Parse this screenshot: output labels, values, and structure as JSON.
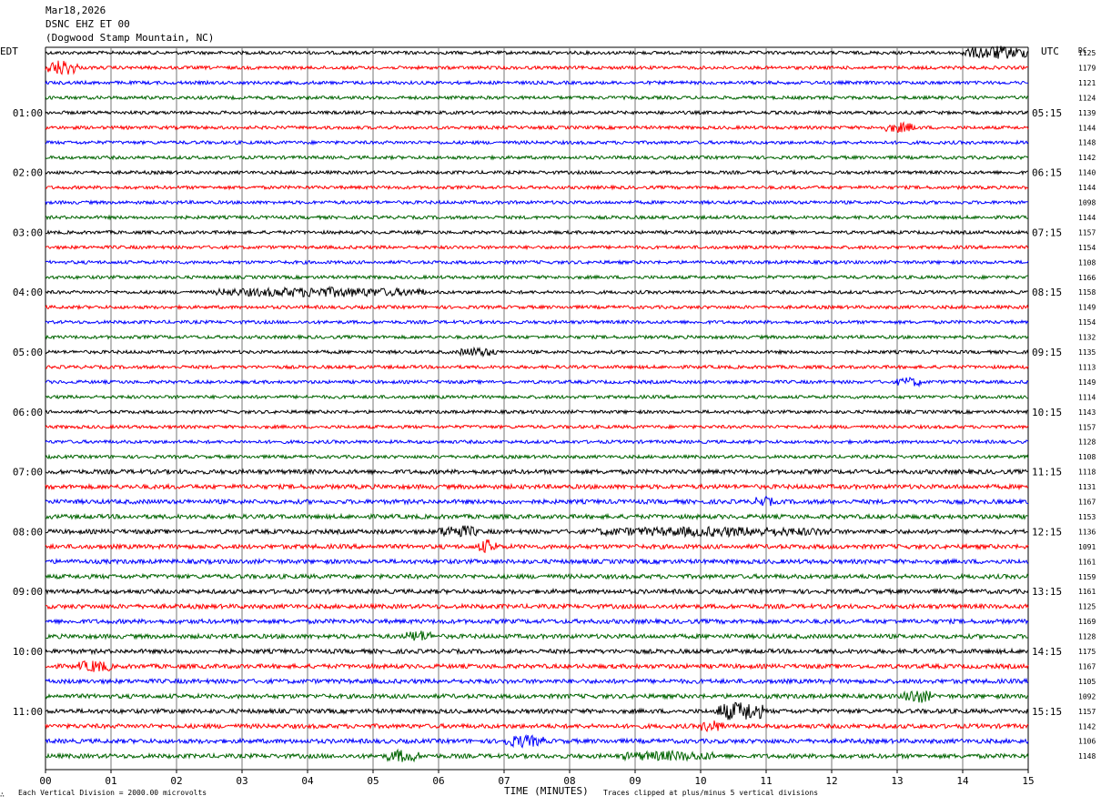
{
  "header": {
    "date": "Mar18,2026",
    "channel": "DSNC EHZ ET 00",
    "station": "(Dogwood Stamp Mountain, NC)"
  },
  "left_zone": "EDT",
  "right_zone": "UTC",
  "dc_heading": "DC",
  "footer": {
    "mark": "∴",
    "scale_note": "Each Vertical Division = 2000.00 microvolts",
    "xlabel": "TIME (MINUTES)",
    "clip_note": "Traces clipped at plus/minus 5 vertical divisions"
  },
  "chart_data": {
    "type": "line",
    "title": "",
    "xlabel": "TIME (MINUTES)",
    "ylabel": "",
    "xlim": [
      0,
      15
    ],
    "x_ticks": [
      "00",
      "01",
      "02",
      "03",
      "04",
      "05",
      "06",
      "07",
      "08",
      "09",
      "10",
      "11",
      "12",
      "13",
      "14",
      "15"
    ],
    "trace_colors": [
      "#000000",
      "#ff0000",
      "#0000ff",
      "#006400"
    ],
    "hour_labels_left": [
      "01:00",
      "02:00",
      "03:00",
      "04:00",
      "05:00",
      "06:00",
      "07:00",
      "08:00",
      "09:00",
      "10:00",
      "11:00"
    ],
    "hour_labels_right": [
      "05:15",
      "06:15",
      "07:15",
      "08:15",
      "09:15",
      "10:15",
      "11:15",
      "12:15",
      "13:15",
      "14:15",
      "15:15"
    ],
    "dc_offsets": [
      "1125",
      "1179",
      "1121",
      "1124",
      "1139",
      "1144",
      "1148",
      "1142",
      "1140",
      "1144",
      "1098",
      "1144",
      "1157",
      "1154",
      "1108",
      "1166",
      "1158",
      "1149",
      "1154",
      "1132",
      "1135",
      "1113",
      "1149",
      "1114",
      "1143",
      "1157",
      "1128",
      "1108",
      "1118",
      "1131",
      "1167",
      "1153",
      "1136",
      "1091",
      "1161",
      "1159",
      "1161",
      "1125",
      "1169",
      "1128",
      "1175",
      "1167",
      "1105",
      "1092",
      "1157",
      "1142",
      "1106",
      "1148"
    ],
    "events": [
      {
        "trace": 0,
        "x_min": 14.0,
        "x_max": 15.0,
        "amp": 2.6
      },
      {
        "trace": 1,
        "x_min": 0.0,
        "x_max": 0.5,
        "amp": 3.2
      },
      {
        "trace": 5,
        "x_min": 12.8,
        "x_max": 13.3,
        "amp": 1.8
      },
      {
        "trace": 16,
        "x_min": 2.6,
        "x_max": 5.8,
        "amp": 1.7
      },
      {
        "trace": 20,
        "x_min": 6.3,
        "x_max": 6.9,
        "amp": 1.5
      },
      {
        "trace": 22,
        "x_min": 13.0,
        "x_max": 13.4,
        "amp": 1.6
      },
      {
        "trace": 30,
        "x_min": 10.8,
        "x_max": 11.1,
        "amp": 1.7
      },
      {
        "trace": 32,
        "x_min": 6.0,
        "x_max": 6.6,
        "amp": 2.2
      },
      {
        "trace": 32,
        "x_min": 8.4,
        "x_max": 12.0,
        "amp": 1.4
      },
      {
        "trace": 33,
        "x_min": 6.6,
        "x_max": 6.9,
        "amp": 2.5
      },
      {
        "trace": 39,
        "x_min": 5.5,
        "x_max": 5.9,
        "amp": 2.0
      },
      {
        "trace": 41,
        "x_min": 0.5,
        "x_max": 1.0,
        "amp": 2.0
      },
      {
        "trace": 43,
        "x_min": 13.1,
        "x_max": 13.5,
        "amp": 2.6
      },
      {
        "trace": 44,
        "x_min": 10.25,
        "x_max": 10.95,
        "amp": 4.2
      },
      {
        "trace": 45,
        "x_min": 10.0,
        "x_max": 10.35,
        "amp": 2.0
      },
      {
        "trace": 46,
        "x_min": 7.0,
        "x_max": 7.6,
        "amp": 2.1
      },
      {
        "trace": 47,
        "x_min": 5.2,
        "x_max": 5.7,
        "amp": 2.2
      },
      {
        "trace": 47,
        "x_min": 8.8,
        "x_max": 10.2,
        "amp": 1.5
      }
    ]
  }
}
